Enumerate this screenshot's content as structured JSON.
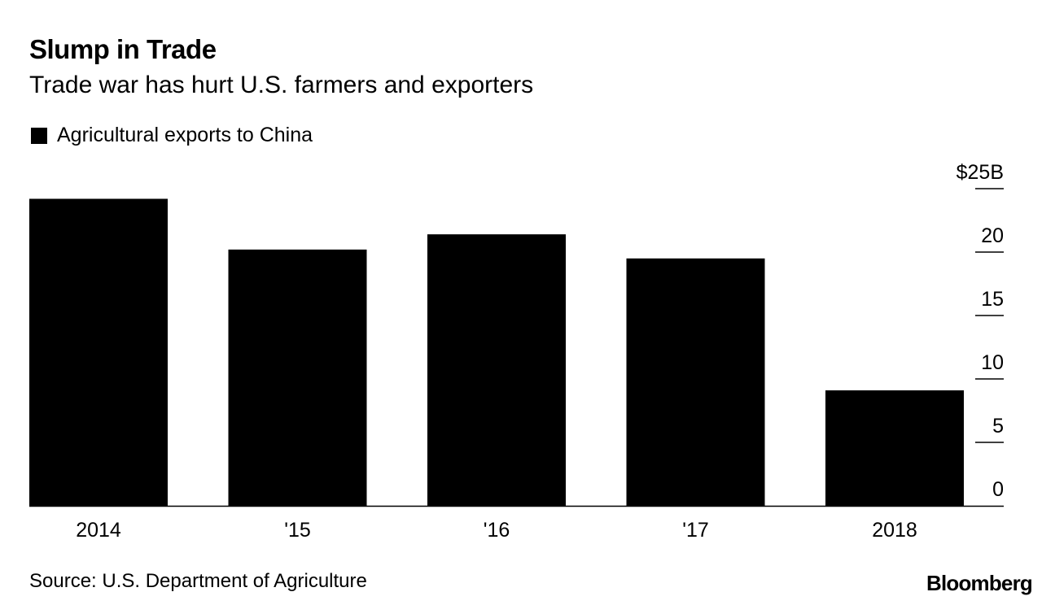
{
  "chart_data": {
    "type": "bar",
    "title": "Slump in Trade",
    "subtitle": "Trade war has hurt U.S. farmers and exporters",
    "categories": [
      "2014",
      "'15",
      "'16",
      "'17",
      "2018"
    ],
    "series": [
      {
        "name": "Agricultural exports to China",
        "values": [
          24.2,
          20.2,
          21.4,
          19.5,
          9.1
        ],
        "color": "#000000"
      }
    ],
    "ylim": [
      0,
      25
    ],
    "yticks": [
      0,
      5,
      10,
      15,
      20,
      25
    ],
    "ytick_labels": [
      "0",
      "5",
      "10",
      "15",
      "20",
      "$25B"
    ],
    "y_axis_position": "right",
    "grid": false,
    "legend": "top-left"
  },
  "footer": {
    "source": "Source: U.S. Department of Agriculture",
    "brand": "Bloomberg"
  }
}
